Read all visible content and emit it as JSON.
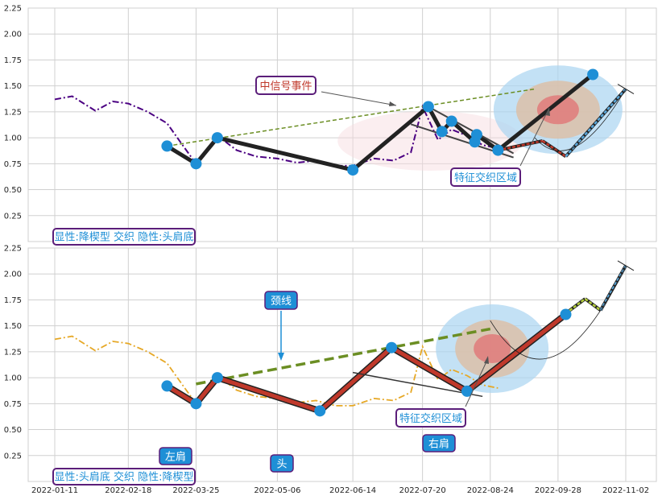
{
  "chart_data": [
    {
      "type": "line",
      "panel": "top",
      "ylim": [
        0,
        2.25
      ],
      "yticks": [
        "0.25",
        "0.50",
        "0.75",
        "1.00",
        "1.25",
        "1.50",
        "1.75",
        "2.00",
        "2.25"
      ],
      "grid": true,
      "x_ticks": [
        "2022-01-11",
        "2022-02-18",
        "2022-03-25",
        "2022-05-06",
        "2022-06-14",
        "2022-07-20",
        "2022-08-24",
        "2022-09-28",
        "2022-11-02"
      ],
      "price_series": {
        "x": [
          "2022-01-11",
          "2022-01-20",
          "2022-02-01",
          "2022-02-10",
          "2022-02-18",
          "2022-02-28",
          "2022-03-10",
          "2022-03-18",
          "2022-03-25",
          "2022-04-05",
          "2022-04-15",
          "2022-04-25",
          "2022-05-06",
          "2022-05-16",
          "2022-05-26",
          "2022-06-05",
          "2022-06-14",
          "2022-06-25",
          "2022-07-05",
          "2022-07-14",
          "2022-07-20",
          "2022-07-28",
          "2022-08-04",
          "2022-08-12",
          "2022-08-20",
          "2022-08-28"
        ],
        "y": [
          1.37,
          1.4,
          1.26,
          1.35,
          1.33,
          1.25,
          1.14,
          0.93,
          0.75,
          1.02,
          0.88,
          0.82,
          0.8,
          0.76,
          0.78,
          0.73,
          0.73,
          0.8,
          0.78,
          0.86,
          1.3,
          0.98,
          1.08,
          1.02,
          0.93,
          0.9
        ]
      },
      "pattern_points": {
        "x": [
          "2022-03-10",
          "2022-03-25",
          "2022-04-05",
          "2022-06-14",
          "2022-07-23",
          "2022-07-30",
          "2022-08-04",
          "2022-08-16",
          "2022-08-17",
          "2022-08-28",
          "2022-10-16"
        ],
        "y": [
          0.92,
          0.75,
          1.0,
          0.69,
          1.3,
          1.06,
          1.16,
          0.96,
          1.03,
          0.88,
          1.61
        ]
      },
      "forecast_zigzag": {
        "x": [
          "2022-08-28",
          "2022-09-20",
          "2022-10-02",
          "2022-11-02"
        ],
        "y": [
          0.88,
          0.97,
          0.82,
          1.47
        ]
      },
      "annotations": [
        "中信号事件",
        "特征交织区域"
      ],
      "caption": "显性:降楔型 交织 隐性:头肩底"
    },
    {
      "type": "line",
      "panel": "bottom",
      "ylim": [
        0,
        2.25
      ],
      "yticks": [
        "0.25",
        "0.50",
        "0.75",
        "1.00",
        "1.25",
        "1.50",
        "1.75",
        "2.00",
        "2.25"
      ],
      "grid": true,
      "x_ticks": [
        "2022-01-11",
        "2022-02-18",
        "2022-03-25",
        "2022-05-06",
        "2022-06-14",
        "2022-07-20",
        "2022-08-24",
        "2022-09-28",
        "2022-11-02"
      ],
      "price_series": {
        "x": [
          "2022-01-11",
          "2022-01-20",
          "2022-02-01",
          "2022-02-10",
          "2022-02-18",
          "2022-02-28",
          "2022-03-10",
          "2022-03-18",
          "2022-03-25",
          "2022-04-05",
          "2022-04-15",
          "2022-04-25",
          "2022-05-06",
          "2022-05-16",
          "2022-05-26",
          "2022-06-05",
          "2022-06-14",
          "2022-06-25",
          "2022-07-05",
          "2022-07-14",
          "2022-07-20",
          "2022-07-28",
          "2022-08-04",
          "2022-08-12",
          "2022-08-20",
          "2022-08-28"
        ],
        "y": [
          1.37,
          1.4,
          1.26,
          1.35,
          1.33,
          1.25,
          1.14,
          0.93,
          0.75,
          1.02,
          0.88,
          0.82,
          0.8,
          0.76,
          0.78,
          0.73,
          0.73,
          0.8,
          0.78,
          0.86,
          1.3,
          0.98,
          1.08,
          1.02,
          0.93,
          0.9
        ]
      },
      "pattern_points": {
        "labels": [
          "",
          "左肩",
          "",
          "头",
          "",
          "右肩",
          ""
        ],
        "x": [
          "2022-03-10",
          "2022-03-25",
          "2022-04-05",
          "2022-05-28",
          "2022-07-04",
          "2022-08-12",
          "2022-10-02"
        ],
        "y": [
          0.92,
          0.75,
          1.0,
          0.68,
          1.29,
          0.87,
          1.61
        ]
      },
      "neckline": {
        "x": [
          "2022-03-25",
          "2022-08-24"
        ],
        "y": [
          0.94,
          1.47
        ]
      },
      "forecast_zigzag": {
        "x": [
          "2022-10-02",
          "2022-10-12",
          "2022-10-20",
          "2022-11-02"
        ],
        "y": [
          1.62,
          1.76,
          1.65,
          2.08
        ]
      },
      "annotations": [
        "颈线",
        "特征交织区域",
        "左肩",
        "头",
        "右肩"
      ],
      "caption": "显性:头肩底 交织 隐性:降楔型"
    }
  ],
  "colors": {
    "top_series": "#4b0082",
    "bottom_series": "#e6a826",
    "marker": "#1e8fd6",
    "pattern_line": "#222222",
    "pattern_line_bottom": "#c0392b",
    "trendline": "#6b8e23",
    "forecast_blue": "#5aa8dc",
    "forecast_red": "#c0392b",
    "zone_outer": "#a9d4f1",
    "zone_mid": "#dcbfa8",
    "zone_inner": "#e07a7a",
    "annotation_border": "#5b1e7a",
    "annotation_text_red": "#c0392b",
    "annotation_text_blue": "#1e8fd6",
    "label_box": "#1e8fd6"
  }
}
